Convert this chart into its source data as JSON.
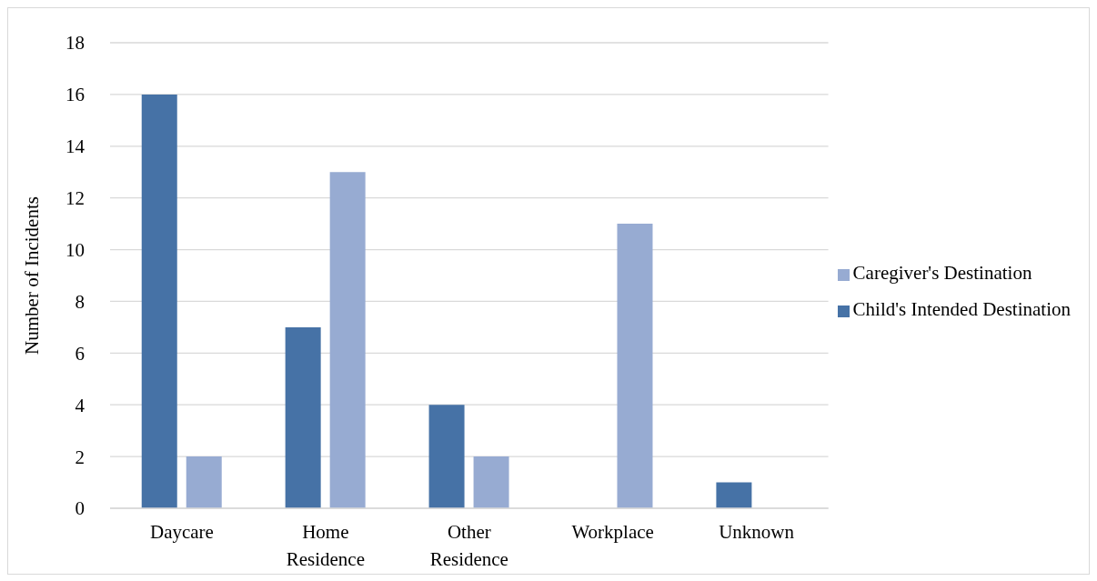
{
  "chart_data": {
    "type": "bar",
    "ylabel": "Number of Incidents",
    "categories": [
      "Daycare",
      "Home Residence",
      "Other Residence",
      "Workplace",
      "Unknown"
    ],
    "series": [
      {
        "name": "Child's Intended Destination",
        "color": "#4672a6",
        "values": [
          16,
          7,
          4,
          0,
          1
        ]
      },
      {
        "name": "Caregiver's Destination",
        "color": "#97abd2",
        "values": [
          2,
          13,
          2,
          11,
          0
        ]
      }
    ],
    "ylim": [
      0,
      18
    ],
    "yticks": [
      0,
      2,
      4,
      6,
      8,
      10,
      12,
      14,
      16,
      18
    ],
    "grid": "y",
    "legend": "right"
  }
}
